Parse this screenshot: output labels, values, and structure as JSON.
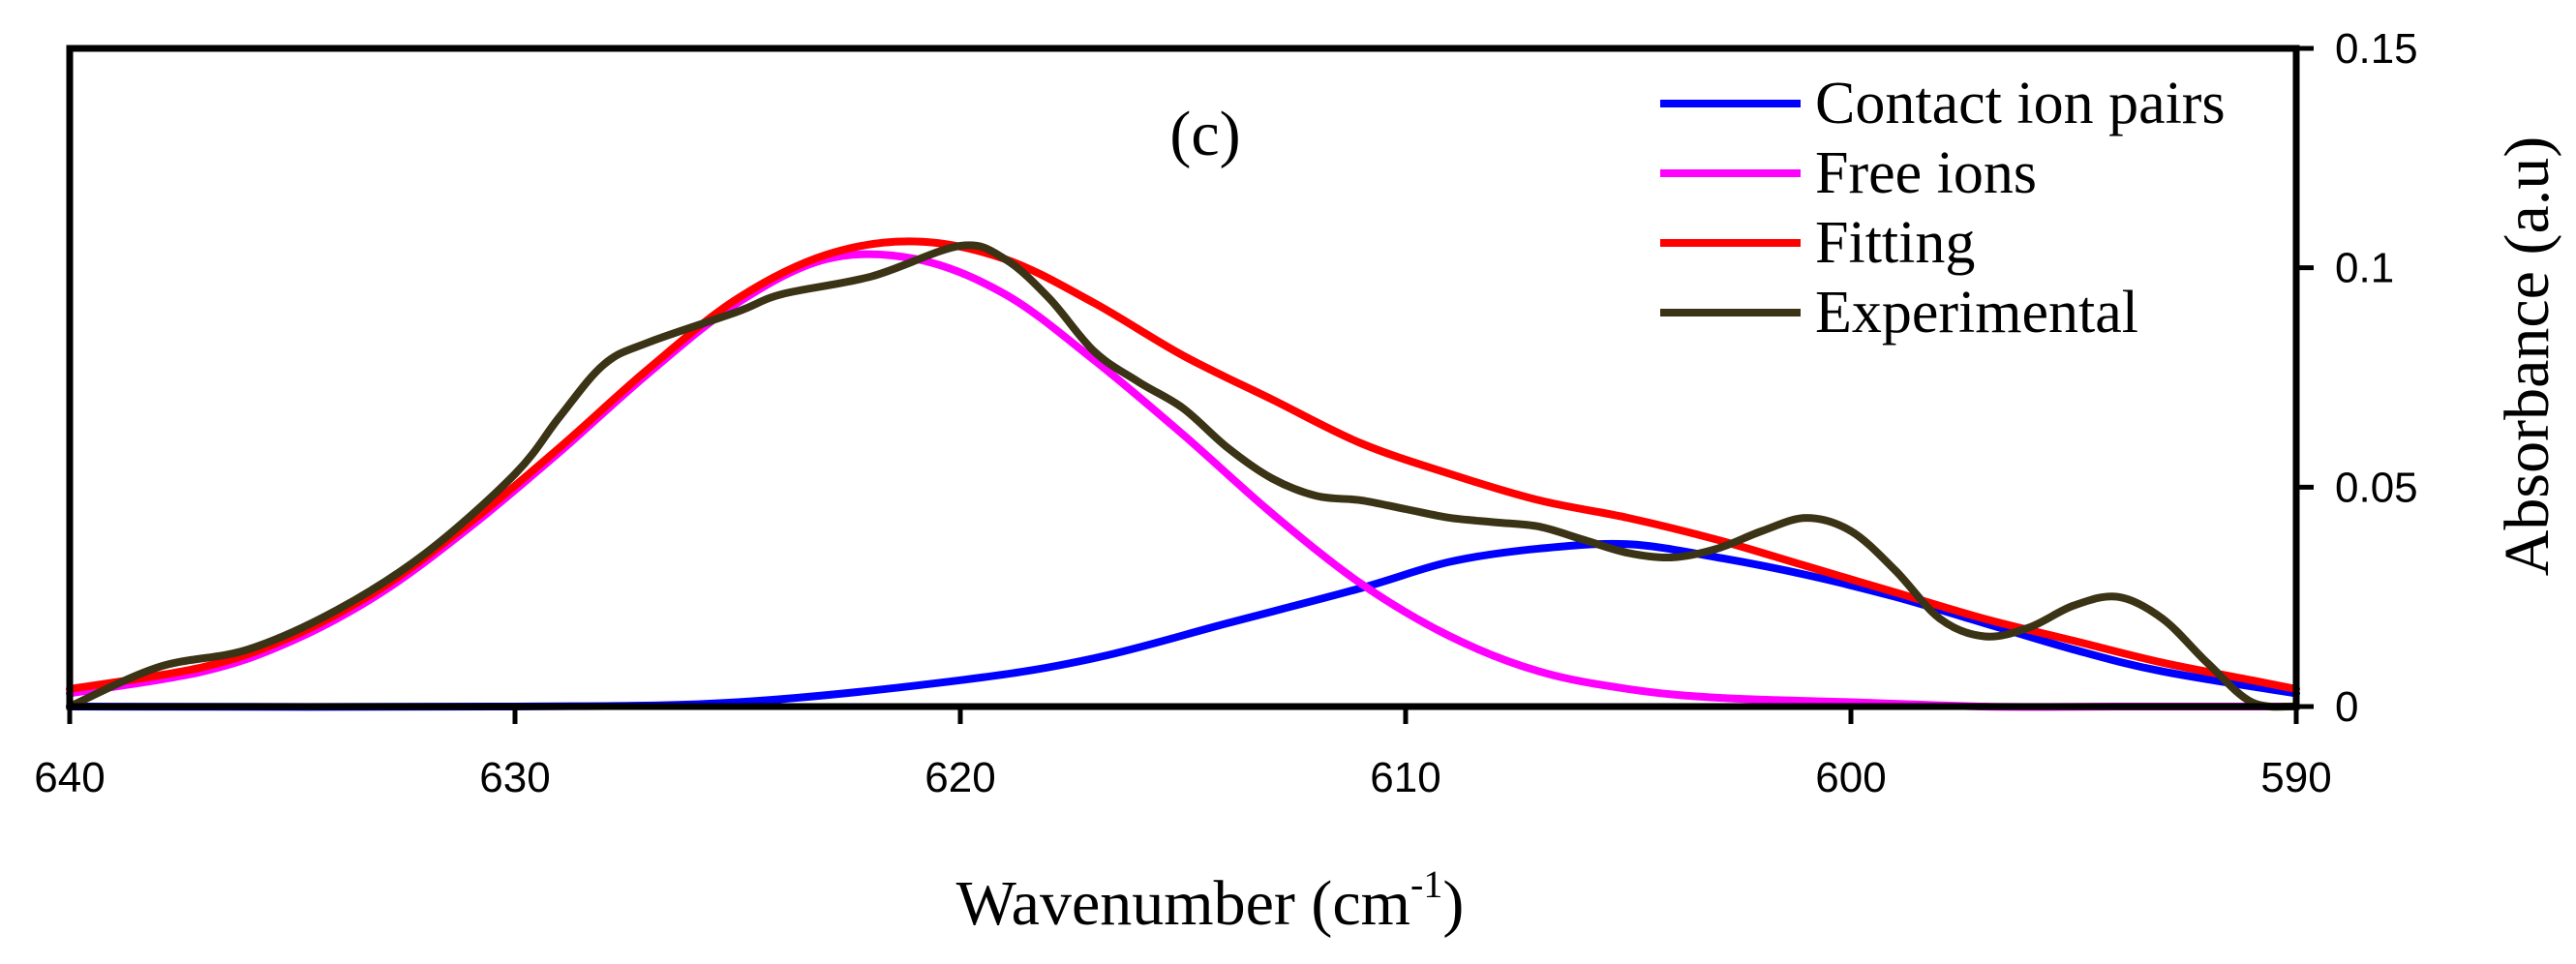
{
  "chart_data": {
    "type": "line",
    "panel_label": "(c)",
    "xlabel": "Wavenumber (cm",
    "xlabel_sup": "-1",
    "xlabel_suffix": ")",
    "ylabel": "Absorbance (a.u)",
    "xlim": [
      640,
      590
    ],
    "ylim": [
      0,
      0.15
    ],
    "x_ticks": [
      {
        "value": 640,
        "label": "640"
      },
      {
        "value": 630,
        "label": "630"
      },
      {
        "value": 620,
        "label": "620"
      },
      {
        "value": 610,
        "label": "610"
      },
      {
        "value": 600,
        "label": "600"
      },
      {
        "value": 590,
        "label": "590"
      }
    ],
    "y_ticks": [
      {
        "value": 0,
        "label": "0"
      },
      {
        "value": 0.05,
        "label": "0.05"
      },
      {
        "value": 0.1,
        "label": "0.1"
      },
      {
        "value": 0.15,
        "label": "0.15"
      }
    ],
    "legend_position": "top-right",
    "series": [
      {
        "name": "Contact ion pairs",
        "color": "#0000ff",
        "x": [
          640,
          630,
          625,
          620,
          617,
          614,
          611,
          609,
          607,
          605,
          603,
          601,
          599,
          597,
          595,
          593,
          590
        ],
        "values": [
          0.0,
          0.0,
          0.001,
          0.006,
          0.011,
          0.019,
          0.027,
          0.033,
          0.036,
          0.037,
          0.034,
          0.03,
          0.025,
          0.019,
          0.013,
          0.008,
          0.003
        ]
      },
      {
        "name": "Free ions",
        "color": "#ff00ff",
        "x": [
          640,
          637,
          635,
          633,
          631,
          629,
          627,
          625,
          623,
          621,
          619,
          617,
          615,
          613,
          611,
          609,
          607,
          605,
          603,
          600,
          597,
          594,
          590
        ],
        "values": [
          0.003,
          0.008,
          0.015,
          0.026,
          0.041,
          0.058,
          0.076,
          0.092,
          0.102,
          0.102,
          0.094,
          0.079,
          0.062,
          0.044,
          0.028,
          0.016,
          0.008,
          0.004,
          0.002,
          0.001,
          0.0,
          0.0,
          0.0
        ]
      },
      {
        "name": "Fitting",
        "color": "#ff0000",
        "x": [
          640,
          637,
          635,
          633,
          631,
          629,
          627,
          625,
          623,
          621,
          619,
          617,
          615,
          613,
          611,
          609,
          607,
          605,
          603,
          601,
          599,
          597,
          595,
          593,
          591,
          590
        ],
        "values": [
          0.004,
          0.009,
          0.016,
          0.027,
          0.042,
          0.059,
          0.077,
          0.093,
          0.103,
          0.106,
          0.102,
          0.092,
          0.08,
          0.07,
          0.06,
          0.053,
          0.047,
          0.043,
          0.038,
          0.032,
          0.026,
          0.02,
          0.015,
          0.01,
          0.006,
          0.004
        ]
      },
      {
        "name": "Experimental",
        "color": "#3b3315",
        "x": [
          640,
          638,
          636,
          634,
          632,
          630,
          629,
          628,
          627,
          625,
          624,
          622,
          620,
          619,
          618,
          617,
          616,
          615,
          614,
          613,
          612,
          611,
          610,
          609,
          608,
          607,
          606,
          605,
          604,
          603,
          602,
          601,
          600,
          599,
          598,
          597,
          596,
          595,
          594,
          593,
          592,
          591,
          590
        ],
        "values": [
          0.0,
          0.009,
          0.013,
          0.022,
          0.035,
          0.053,
          0.066,
          0.078,
          0.083,
          0.09,
          0.094,
          0.098,
          0.105,
          0.102,
          0.093,
          0.081,
          0.074,
          0.068,
          0.059,
          0.052,
          0.048,
          0.047,
          0.045,
          0.043,
          0.042,
          0.041,
          0.038,
          0.035,
          0.034,
          0.036,
          0.04,
          0.043,
          0.04,
          0.031,
          0.02,
          0.016,
          0.018,
          0.023,
          0.025,
          0.02,
          0.01,
          0.001,
          0.0
        ]
      }
    ]
  }
}
